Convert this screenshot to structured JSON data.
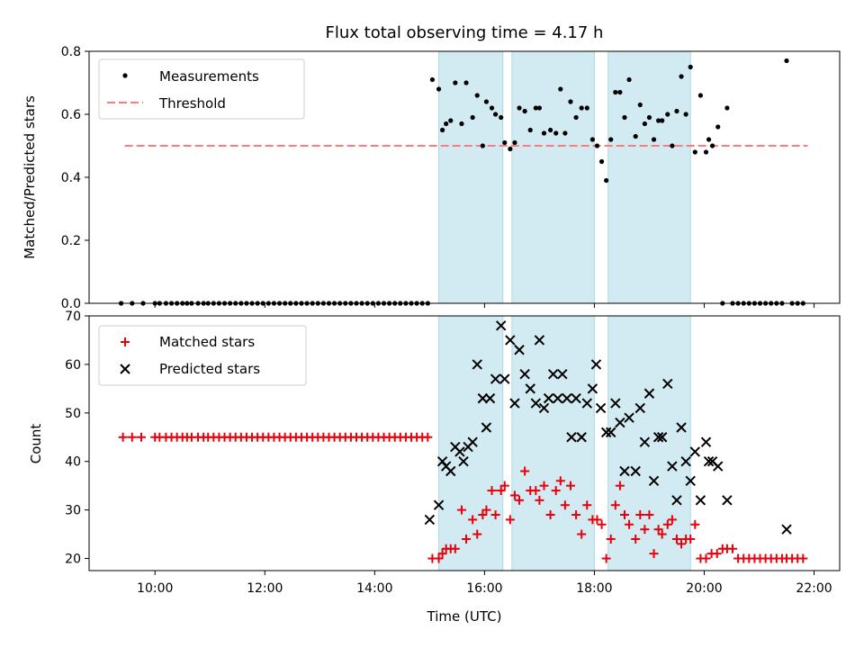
{
  "chart_data": {
    "title": "Flux total observing time = 4.17 h",
    "xlabel": "Time (UTC)",
    "x_unit": "hours UTC",
    "xlim": [
      "08:48",
      "22:28"
    ],
    "x_ticks": [
      "10:00",
      "12:00",
      "14:00",
      "16:00",
      "18:00",
      "20:00",
      "22:00"
    ],
    "shaded_spans": [
      {
        "start": "15:10",
        "end": "16:20",
        "color": "#add8e6"
      },
      {
        "start": "16:30",
        "end": "18:00",
        "color": "#add8e6"
      },
      {
        "start": "18:15",
        "end": "19:45",
        "color": "#add8e6"
      }
    ],
    "panels": [
      {
        "id": "ratio",
        "type": "scatter",
        "ylabel": "Matched/Predicted stars",
        "ylim": [
          0.0,
          0.8
        ],
        "y_ticks": [
          "0.0",
          "0.2",
          "0.4",
          "0.6",
          "0.8"
        ],
        "legend": {
          "position": "upper-left",
          "entries": [
            {
              "label": "Measurements",
              "marker": "dot",
              "color": "#000000"
            },
            {
              "label": "Threshold",
              "marker": "dashed-line",
              "color": "#ff7b7b"
            }
          ]
        },
        "threshold": {
          "name": "Threshold",
          "y": 0.5,
          "x_start": "09:27",
          "x_end": "21:53",
          "color": "#ff7b7b"
        },
        "series": [
          {
            "name": "Measurements",
            "marker": "dot",
            "color": "#000000",
            "x": [
              "09:23",
              "09:35",
              "09:47",
              "10:00",
              "10:05",
              "10:12",
              "10:18",
              "10:24",
              "10:30",
              "10:35",
              "10:40",
              "10:47",
              "10:53",
              "10:58",
              "11:04",
              "11:10",
              "11:16",
              "11:22",
              "11:28",
              "11:34",
              "11:40",
              "11:46",
              "11:52",
              "11:58",
              "12:04",
              "12:10",
              "12:16",
              "12:22",
              "12:28",
              "12:34",
              "12:40",
              "12:46",
              "12:52",
              "12:58",
              "13:04",
              "13:10",
              "13:16",
              "13:22",
              "13:28",
              "13:34",
              "13:40",
              "13:46",
              "13:52",
              "13:58",
              "14:04",
              "14:10",
              "14:16",
              "14:22",
              "14:28",
              "14:34",
              "14:40",
              "14:46",
              "14:52",
              "14:58",
              "15:03",
              "15:10",
              "15:14",
              "15:18",
              "15:23",
              "15:28",
              "15:35",
              "15:40",
              "15:47",
              "15:52",
              "15:58",
              "16:02",
              "16:08",
              "16:12",
              "16:18",
              "16:22",
              "16:28",
              "16:33",
              "16:38",
              "16:44",
              "16:50",
              "16:56",
              "17:00",
              "17:05",
              "17:12",
              "17:18",
              "17:23",
              "17:28",
              "17:34",
              "17:40",
              "17:46",
              "17:52",
              "17:58",
              "18:03",
              "18:08",
              "18:13",
              "18:18",
              "18:23",
              "18:28",
              "18:33",
              "18:38",
              "18:45",
              "18:50",
              "18:55",
              "19:00",
              "19:05",
              "19:10",
              "19:14",
              "19:20",
              "19:25",
              "19:30",
              "19:35",
              "19:40",
              "19:45",
              "19:50",
              "19:56",
              "20:02",
              "20:05",
              "20:09",
              "20:15",
              "20:20",
              "20:25",
              "20:31",
              "20:37",
              "20:43",
              "20:49",
              "20:55",
              "21:01",
              "21:07",
              "21:13",
              "21:19",
              "21:25",
              "21:30",
              "21:36",
              "21:42",
              "21:48"
            ],
            "y": [
              0.0,
              0.0,
              0.0,
              0.0,
              0.0,
              0.0,
              0.0,
              0.0,
              0.0,
              0.0,
              0.0,
              0.0,
              0.0,
              0.0,
              0.0,
              0.0,
              0.0,
              0.0,
              0.0,
              0.0,
              0.0,
              0.0,
              0.0,
              0.0,
              0.0,
              0.0,
              0.0,
              0.0,
              0.0,
              0.0,
              0.0,
              0.0,
              0.0,
              0.0,
              0.0,
              0.0,
              0.0,
              0.0,
              0.0,
              0.0,
              0.0,
              0.0,
              0.0,
              0.0,
              0.0,
              0.0,
              0.0,
              0.0,
              0.0,
              0.0,
              0.0,
              0.0,
              0.0,
              0.0,
              0.71,
              0.68,
              0.55,
              0.57,
              0.58,
              0.7,
              0.57,
              0.7,
              0.59,
              0.66,
              0.5,
              0.64,
              0.62,
              0.6,
              0.59,
              0.51,
              0.49,
              0.51,
              0.62,
              0.61,
              0.55,
              0.62,
              0.62,
              0.54,
              0.55,
              0.54,
              0.68,
              0.54,
              0.64,
              0.59,
              0.62,
              0.62,
              0.52,
              0.5,
              0.45,
              0.39,
              0.52,
              0.67,
              0.67,
              0.59,
              0.71,
              0.53,
              0.63,
              0.57,
              0.59,
              0.52,
              0.58,
              0.58,
              0.6,
              0.5,
              0.61,
              0.72,
              0.6,
              0.75,
              0.48,
              0.66,
              0.48,
              0.52,
              0.5,
              0.56,
              0.0,
              0.62,
              0.0,
              0.0,
              0.0,
              0.0,
              0.0,
              0.0,
              0.0,
              0.0,
              0.0,
              0.0,
              0.77,
              0.0,
              0.0,
              0.0
            ]
          }
        ]
      },
      {
        "id": "counts",
        "type": "scatter",
        "ylabel": "Count",
        "ylim": [
          17.5,
          70
        ],
        "y_ticks": [
          "20",
          "30",
          "40",
          "50",
          "60",
          "70"
        ],
        "legend": {
          "position": "upper-left",
          "entries": [
            {
              "label": "Matched stars",
              "marker": "plus",
              "color": "#e8000b"
            },
            {
              "label": "Predicted stars",
              "marker": "x",
              "color": "#000000"
            }
          ]
        },
        "series": [
          {
            "name": "Matched stars",
            "marker": "plus",
            "color": "#e8000b",
            "x": [
              "09:25",
              "09:35",
              "09:45",
              "10:00",
              "10:05",
              "10:12",
              "10:18",
              "10:24",
              "10:30",
              "10:35",
              "10:40",
              "10:47",
              "10:53",
              "10:58",
              "11:04",
              "11:10",
              "11:16",
              "11:22",
              "11:28",
              "11:34",
              "11:40",
              "11:46",
              "11:52",
              "11:58",
              "12:04",
              "12:10",
              "12:16",
              "12:22",
              "12:28",
              "12:34",
              "12:40",
              "12:46",
              "12:52",
              "12:58",
              "13:04",
              "13:10",
              "13:16",
              "13:22",
              "13:28",
              "13:34",
              "13:40",
              "13:46",
              "13:52",
              "13:58",
              "14:04",
              "14:10",
              "14:16",
              "14:22",
              "14:28",
              "14:34",
              "14:40",
              "14:46",
              "14:52",
              "14:58",
              "15:03",
              "15:10",
              "15:14",
              "15:18",
              "15:23",
              "15:28",
              "15:35",
              "15:40",
              "15:47",
              "15:52",
              "15:58",
              "16:02",
              "16:08",
              "16:12",
              "16:18",
              "16:22",
              "16:28",
              "16:33",
              "16:38",
              "16:44",
              "16:50",
              "16:56",
              "17:00",
              "17:05",
              "17:12",
              "17:18",
              "17:23",
              "17:28",
              "17:34",
              "17:40",
              "17:46",
              "17:52",
              "17:58",
              "18:03",
              "18:08",
              "18:13",
              "18:18",
              "18:23",
              "18:28",
              "18:33",
              "18:38",
              "18:45",
              "18:50",
              "18:55",
              "19:00",
              "19:05",
              "19:10",
              "19:14",
              "19:20",
              "19:25",
              "19:30",
              "19:35",
              "19:40",
              "19:45",
              "19:50",
              "19:56",
              "20:02",
              "20:08",
              "20:14",
              "20:20",
              "20:25",
              "20:31",
              "20:37",
              "20:43",
              "20:49",
              "20:55",
              "21:01",
              "21:07",
              "21:13",
              "21:19",
              "21:25",
              "21:30",
              "21:36",
              "21:42",
              "21:48"
            ],
            "y": [
              45,
              45,
              45,
              45,
              45,
              45,
              45,
              45,
              45,
              45,
              45,
              45,
              45,
              45,
              45,
              45,
              45,
              45,
              45,
              45,
              45,
              45,
              45,
              45,
              45,
              45,
              45,
              45,
              45,
              45,
              45,
              45,
              45,
              45,
              45,
              45,
              45,
              45,
              45,
              45,
              45,
              45,
              45,
              45,
              45,
              45,
              45,
              45,
              45,
              45,
              45,
              45,
              45,
              45,
              20,
              20,
              21,
              22,
              22,
              22,
              30,
              24,
              28,
              25,
              29,
              30,
              34,
              29,
              34,
              35,
              28,
              33,
              32,
              38,
              34,
              34,
              32,
              35,
              29,
              34,
              36,
              31,
              35,
              29,
              25,
              31,
              28,
              28,
              27,
              20,
              24,
              31,
              35,
              29,
              27,
              24,
              29,
              26,
              29,
              21,
              26,
              25,
              27,
              28,
              24,
              23,
              24,
              24,
              27,
              20,
              20,
              21,
              21,
              22,
              22,
              22,
              20,
              20,
              20,
              20,
              20,
              20,
              20,
              20,
              20,
              20,
              20,
              20,
              20
            ]
          },
          {
            "name": "Predicted stars",
            "marker": "x",
            "color": "#000000",
            "x": [
              "15:00",
              "15:10",
              "15:14",
              "15:18",
              "15:23",
              "15:28",
              "15:33",
              "15:37",
              "15:42",
              "15:47",
              "15:52",
              "15:58",
              "16:02",
              "16:06",
              "16:12",
              "16:18",
              "16:22",
              "16:28",
              "16:33",
              "16:38",
              "16:44",
              "16:50",
              "16:56",
              "17:00",
              "17:05",
              "17:10",
              "17:15",
              "17:20",
              "17:25",
              "17:30",
              "17:35",
              "17:40",
              "17:46",
              "17:52",
              "17:58",
              "18:02",
              "18:07",
              "18:13",
              "18:18",
              "18:23",
              "18:28",
              "18:33",
              "18:38",
              "18:45",
              "18:50",
              "18:55",
              "19:00",
              "19:05",
              "19:10",
              "19:14",
              "19:20",
              "19:25",
              "19:30",
              "19:35",
              "19:40",
              "19:45",
              "19:50",
              "19:56",
              "20:02",
              "20:05",
              "20:09",
              "20:15",
              "20:25",
              "21:30"
            ],
            "y": [
              28,
              31,
              40,
              39,
              38,
              43,
              42,
              40,
              43,
              44,
              60,
              53,
              47,
              53,
              57,
              68,
              57,
              65,
              52,
              63,
              58,
              55,
              52,
              65,
              51,
              53,
              58,
              53,
              58,
              53,
              45,
              53,
              45,
              52,
              55,
              60,
              51,
              46,
              46,
              52,
              48,
              38,
              49,
              38,
              51,
              44,
              54,
              36,
              45,
              45,
              56,
              39,
              32,
              47,
              40,
              36,
              42,
              32,
              44,
              40,
              40,
              39,
              32,
              26
            ]
          }
        ]
      }
    ]
  }
}
